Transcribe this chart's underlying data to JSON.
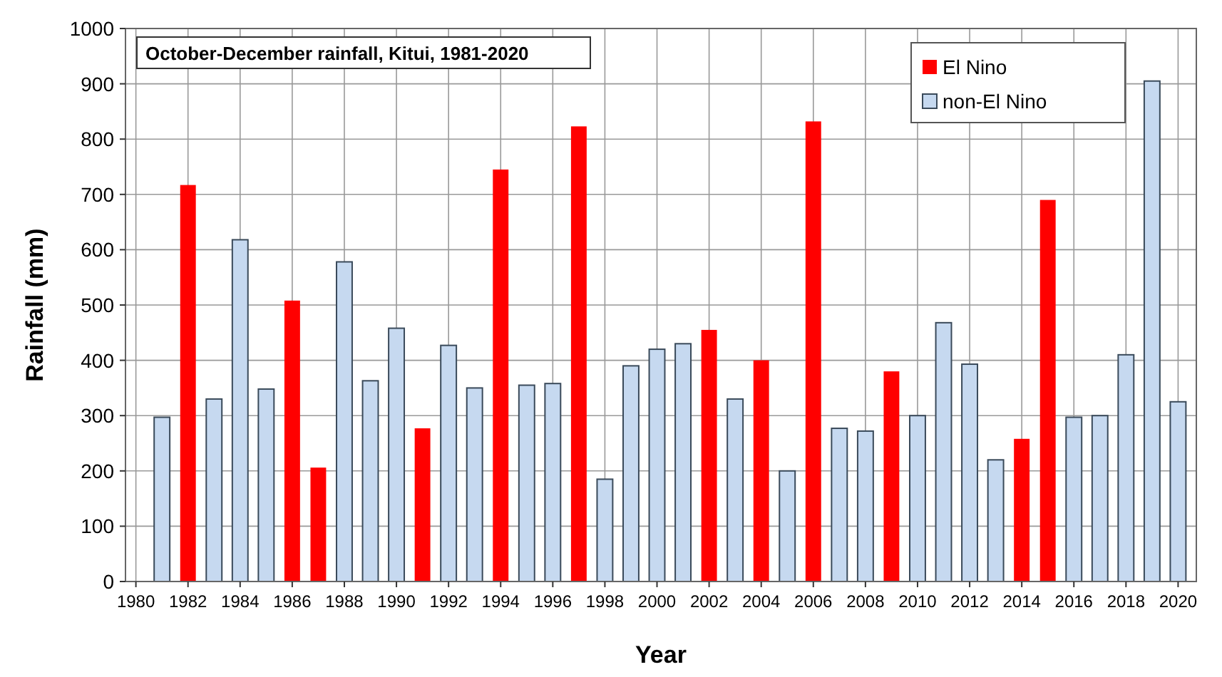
{
  "chart_data": {
    "type": "bar",
    "title": "October-December rainfall, Kitui, 1981-2020",
    "xlabel": "Year",
    "ylabel": "Rainfall (mm)",
    "x": [
      1981,
      1982,
      1983,
      1984,
      1985,
      1986,
      1987,
      1988,
      1989,
      1990,
      1991,
      1992,
      1993,
      1994,
      1995,
      1996,
      1997,
      1998,
      1999,
      2000,
      2001,
      2002,
      2003,
      2004,
      2005,
      2006,
      2007,
      2008,
      2009,
      2010,
      2011,
      2012,
      2013,
      2014,
      2015,
      2016,
      2017,
      2018,
      2019,
      2020
    ],
    "series": [
      {
        "name": "El Nino",
        "color": "#ff0000",
        "values": [
          null,
          717,
          null,
          null,
          null,
          508,
          206,
          null,
          null,
          null,
          277,
          null,
          null,
          745,
          null,
          null,
          823,
          null,
          null,
          null,
          null,
          455,
          null,
          400,
          null,
          832,
          null,
          null,
          380,
          null,
          null,
          null,
          null,
          258,
          690,
          null,
          null,
          null,
          null,
          null
        ]
      },
      {
        "name": "non-El Nino",
        "color": "#c6d9f0",
        "values": [
          297,
          null,
          330,
          618,
          348,
          null,
          null,
          578,
          363,
          458,
          null,
          427,
          350,
          null,
          355,
          358,
          null,
          185,
          390,
          420,
          430,
          null,
          330,
          null,
          200,
          null,
          277,
          272,
          null,
          300,
          468,
          393,
          220,
          null,
          null,
          297,
          300,
          410,
          905,
          325
        ]
      }
    ],
    "xlim": [
      1979.6,
      2020.7
    ],
    "xticks": [
      1980,
      1982,
      1984,
      1986,
      1988,
      1990,
      1992,
      1994,
      1996,
      1998,
      2000,
      2002,
      2004,
      2006,
      2008,
      2010,
      2012,
      2014,
      2016,
      2018,
      2020
    ],
    "ylim": [
      0,
      1000
    ],
    "yticks": [
      0,
      100,
      200,
      300,
      400,
      500,
      600,
      700,
      800,
      900,
      1000
    ],
    "grid": true,
    "legend": "top right"
  }
}
